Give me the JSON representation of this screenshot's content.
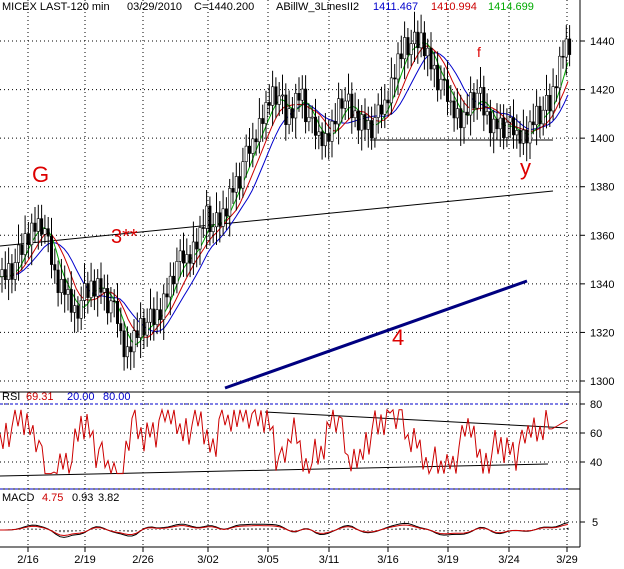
{
  "chart_data": {
    "type": "candlestick",
    "header": {
      "symbol": "MICEX LAST-120 min",
      "date": "03/29/2010",
      "close": "C=1440.200",
      "indicator": "ABillW_3LinesII2",
      "v1": "1411.467",
      "v2": "1410.994",
      "v3": "1414.699"
    },
    "price_axis": {
      "ticks": [
        "1440",
        "1420",
        "1400",
        "1380",
        "1360",
        "1340",
        "1320",
        "1300"
      ],
      "range": [
        1294,
        1452
      ]
    },
    "x_ticks": [
      "2/16",
      "2/19",
      "2/26",
      "3/02",
      "3/05",
      "3/11",
      "3/16",
      "3/19",
      "3/24",
      "3/29"
    ],
    "series": [
      {
        "name": "1411.467",
        "color": "#0000cc"
      },
      {
        "name": "1410.994",
        "color": "#cc0000"
      },
      {
        "name": "1414.699",
        "color": "#00aa00"
      }
    ],
    "annotations": {
      "G": "G",
      "three": "3**",
      "four": "4",
      "f": "f",
      "y": "y"
    },
    "rsi": {
      "label": "RSI",
      "value": "69.31",
      "low": "20.00",
      "high": "80.00",
      "ticks": [
        "80",
        "60",
        "40"
      ]
    },
    "macd": {
      "label": "MACD",
      "v1": "4.75",
      "v2": "0.93",
      "v3": "3.82",
      "ticks": [
        "5"
      ]
    },
    "colors": {
      "candle": "#000000",
      "ma_blue": "#0000cc",
      "ma_red": "#cc0000",
      "ma_green": "#00aa00",
      "trend4": "#000080",
      "annot": "#dd0000"
    }
  }
}
